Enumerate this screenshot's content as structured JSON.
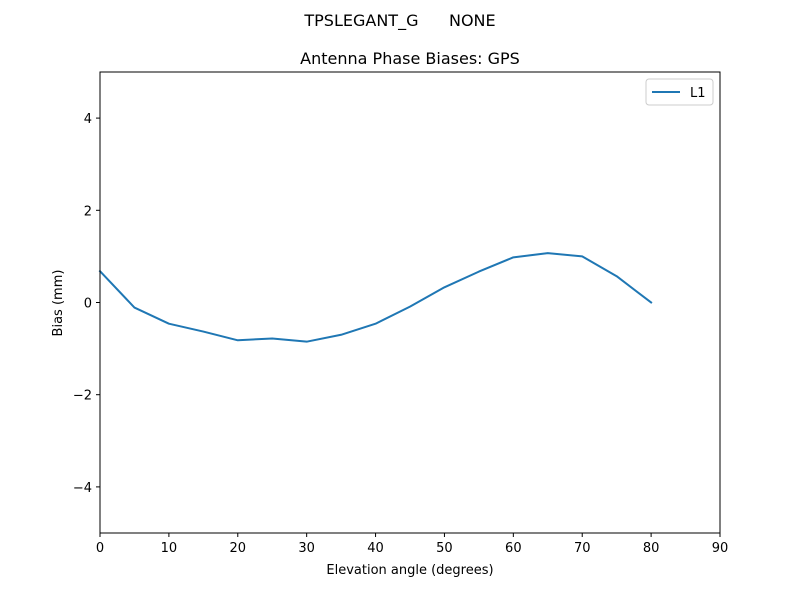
{
  "figure": {
    "suptitle": "TPSLEGANT_G      NONE"
  },
  "chart_data": {
    "type": "line",
    "title": "Antenna Phase Biases: GPS",
    "xlabel": "Elevation angle (degrees)",
    "ylabel": "Bias (mm)",
    "xlim": [
      0,
      90
    ],
    "ylim": [
      -5,
      5
    ],
    "xticks": [
      0,
      10,
      20,
      30,
      40,
      50,
      60,
      70,
      80,
      90
    ],
    "yticks": [
      -4,
      -2,
      0,
      2,
      4
    ],
    "legend_position": "top-right",
    "grid": false,
    "series": [
      {
        "name": "L1",
        "color": "#1f77b4",
        "x": [
          0,
          5,
          10,
          15,
          20,
          25,
          30,
          35,
          40,
          45,
          50,
          55,
          60,
          65,
          70,
          75,
          80
        ],
        "y": [
          0.68,
          -0.11,
          -0.46,
          -0.63,
          -0.82,
          -0.78,
          -0.85,
          -0.7,
          -0.46,
          -0.09,
          0.33,
          0.67,
          0.98,
          1.07,
          1.0,
          0.57,
          0.0
        ]
      }
    ]
  }
}
